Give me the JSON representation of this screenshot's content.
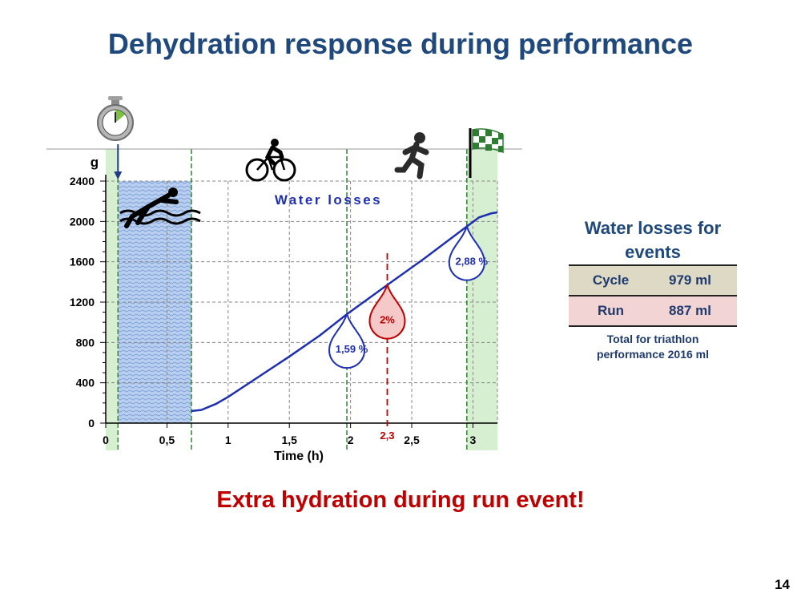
{
  "slide": {
    "title": "Dehydration response during performance",
    "conclusion": "Extra hydration during run event!",
    "page_number": "14"
  },
  "side_panel": {
    "title_line1": "Water losses for",
    "title_line2": "events",
    "rows": [
      {
        "event": "Cycle",
        "value": "979 ml"
      },
      {
        "event": "Run",
        "value": "887 ml"
      }
    ],
    "total_line1": "Total for triathlon",
    "total_line2": "performance  2016 ml"
  },
  "chart_data": {
    "type": "line",
    "title": "",
    "xlabel": "Time (h)",
    "ylabel": "g",
    "xlim": [
      0,
      3.2
    ],
    "ylim": [
      0,
      2400
    ],
    "x_ticks": [
      0,
      0.5,
      1,
      1.5,
      2,
      2.5,
      3
    ],
    "x_tick_labels": [
      "0",
      "0,5",
      "1",
      "1,5",
      "2",
      "2,5",
      "3"
    ],
    "y_ticks": [
      0,
      400,
      800,
      1200,
      1600,
      2000,
      2400
    ],
    "y_tick_labels": [
      "0",
      "400",
      "800",
      "1200",
      "1600",
      "2000",
      "2400"
    ],
    "grid": true,
    "series": [
      {
        "name": "Water losses",
        "color": "#1f2fb4",
        "x": [
          0.7,
          0.78,
          0.9,
          1.0,
          1.25,
          1.5,
          1.75,
          1.97,
          2.3,
          2.6,
          2.95,
          3.05,
          3.15,
          3.2
        ],
        "y": [
          120,
          130,
          190,
          260,
          460,
          660,
          870,
          1080,
          1370,
          1630,
          1950,
          2040,
          2080,
          2090
        ]
      }
    ],
    "swim_band": [
      0.1,
      0.7
    ],
    "transition_bands": [
      [
        0,
        0.1
      ],
      [
        2.95,
        3.2
      ]
    ],
    "markers_x": [
      0.1,
      0.7,
      1.97,
      2.95
    ],
    "annotations": [
      {
        "text": "1,59 %",
        "x": 1.97,
        "y": 1080,
        "color": "#1f2fb4"
      },
      {
        "text": "2%",
        "x": 2.3,
        "y": 1370,
        "color": "#c00000"
      },
      {
        "text": "2,88 %",
        "x": 2.95,
        "y": 1950,
        "color": "#1f2fb4"
      }
    ],
    "event_marker": {
      "x": 2.3,
      "label": "2,3",
      "color": "#c00000"
    },
    "colors": {
      "axis": "#000000",
      "grid": "#888888",
      "swim": "#b8cff0",
      "transition": "#d6efd0",
      "marker": "#3b8a3b"
    },
    "icons": [
      "stopwatch-icon",
      "swimmer-icon",
      "cyclist-icon",
      "runner-icon",
      "finish-flag-icon"
    ]
  }
}
